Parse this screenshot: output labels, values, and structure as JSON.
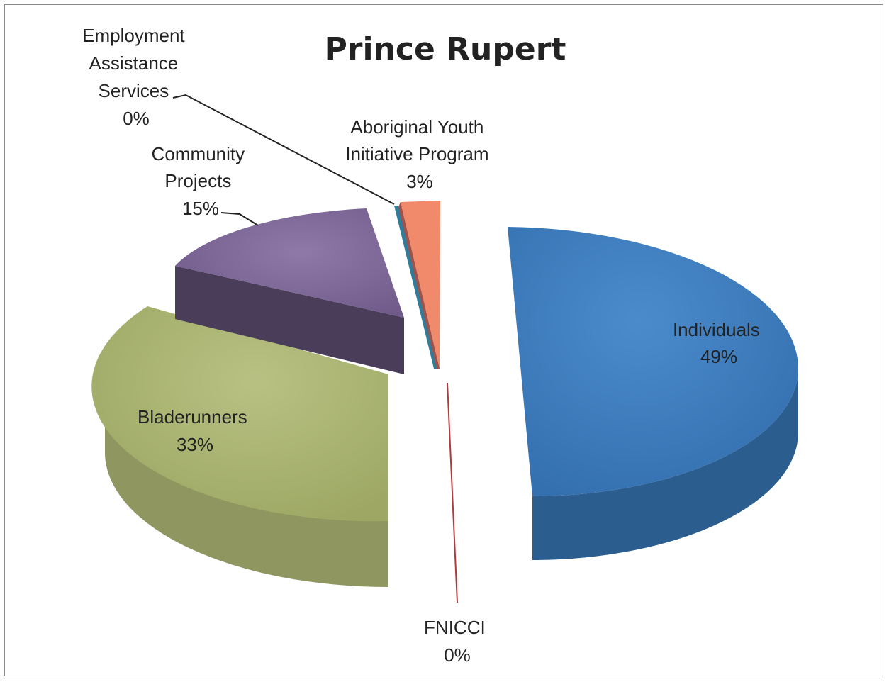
{
  "chart_data": {
    "type": "pie",
    "title": "Prince Rupert",
    "slices": [
      {
        "label": "Individuals",
        "value": 49,
        "value_label": "49%",
        "color": "#3a78b8"
      },
      {
        "label": "FNICCI",
        "value": 0,
        "value_label": "0%",
        "color": "#b23a3a"
      },
      {
        "label": "Bladerunners",
        "value": 33,
        "value_label": "33%",
        "color": "#a9b472"
      },
      {
        "label": "Community Projects",
        "value": 15,
        "value_label": "15%",
        "color": "#7b6596"
      },
      {
        "label": "Employment Assistance Services",
        "value": 0,
        "value_label": "0%",
        "color": "#2f7d9a"
      },
      {
        "label": "Aboriginal Youth Initiative Program",
        "value": 3,
        "value_label": "3%",
        "color": "#f08a6a"
      }
    ]
  }
}
